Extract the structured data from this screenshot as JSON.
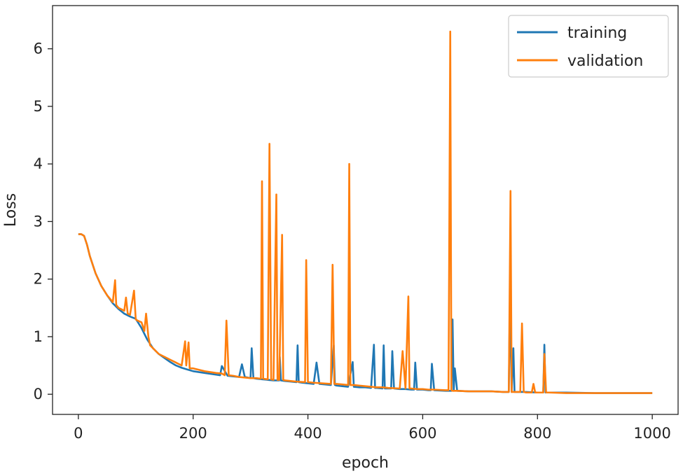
{
  "chart_data": {
    "type": "line",
    "title": "",
    "xlabel": "epoch",
    "ylabel": "Loss",
    "xlim": [
      -45,
      1045
    ],
    "ylim": [
      -0.35,
      6.75
    ],
    "xticks": [
      0,
      200,
      400,
      600,
      800,
      1000
    ],
    "yticks": [
      0,
      1,
      2,
      3,
      4,
      5,
      6
    ],
    "grid": false,
    "legend": "top-right",
    "series": [
      {
        "name": "training",
        "color": "#1f77b4",
        "x": [
          0,
          5,
          10,
          15,
          20,
          30,
          40,
          50,
          60,
          70,
          80,
          90,
          100,
          110,
          120,
          130,
          140,
          150,
          160,
          170,
          180,
          190,
          200,
          220,
          240,
          247,
          250,
          260,
          280,
          285,
          290,
          300,
          302,
          305,
          310,
          320,
          330,
          340,
          350,
          351,
          353,
          360,
          370,
          380,
          382,
          384,
          390,
          400,
          410,
          415,
          420,
          430,
          440,
          445,
          447,
          450,
          460,
          470,
          478,
          480,
          490,
          500,
          510,
          515,
          517,
          520,
          530,
          532,
          534,
          540,
          545,
          547,
          550,
          560,
          570,
          580,
          585,
          587,
          590,
          600,
          610,
          614,
          616,
          620,
          640,
          650,
          652,
          654,
          656,
          660,
          680,
          700,
          720,
          740,
          750,
          752,
          755,
          758,
          760,
          780,
          800,
          810,
          812,
          814,
          820,
          850,
          900,
          950,
          1000
        ],
        "y": [
          2.78,
          2.78,
          2.75,
          2.6,
          2.4,
          2.1,
          1.88,
          1.72,
          1.58,
          1.48,
          1.4,
          1.35,
          1.31,
          1.15,
          0.95,
          0.8,
          0.7,
          0.63,
          0.56,
          0.5,
          0.46,
          0.43,
          0.4,
          0.37,
          0.34,
          0.33,
          0.49,
          0.32,
          0.3,
          0.52,
          0.3,
          0.28,
          0.8,
          0.28,
          0.27,
          0.26,
          0.25,
          0.24,
          0.24,
          0.65,
          0.24,
          0.23,
          0.22,
          0.21,
          0.85,
          0.21,
          0.2,
          0.19,
          0.18,
          0.55,
          0.18,
          0.17,
          0.16,
          0.85,
          0.16,
          0.15,
          0.14,
          0.13,
          0.56,
          0.13,
          0.12,
          0.12,
          0.11,
          0.86,
          0.11,
          0.11,
          0.1,
          0.85,
          0.1,
          0.1,
          0.1,
          0.75,
          0.1,
          0.09,
          0.09,
          0.08,
          0.08,
          0.55,
          0.08,
          0.08,
          0.07,
          0.07,
          0.53,
          0.07,
          0.06,
          0.06,
          1.3,
          0.06,
          0.45,
          0.06,
          0.05,
          0.05,
          0.05,
          0.04,
          0.04,
          1.75,
          0.04,
          0.8,
          0.04,
          0.04,
          0.03,
          0.03,
          0.86,
          0.03,
          0.03,
          0.03,
          0.02,
          0.02,
          0.02
        ]
      },
      {
        "name": "validation",
        "color": "#ff7f0e",
        "x": [
          0,
          5,
          10,
          15,
          20,
          30,
          40,
          50,
          60,
          64,
          66,
          70,
          80,
          83,
          86,
          90,
          97,
          100,
          103,
          110,
          115,
          118,
          122,
          125,
          130,
          135,
          140,
          150,
          160,
          170,
          180,
          186,
          188,
          192,
          194,
          200,
          220,
          240,
          250,
          255,
          258,
          262,
          270,
          280,
          300,
          310,
          318,
          320,
          322,
          330,
          333,
          336,
          340,
          345,
          347,
          350,
          355,
          357,
          360,
          370,
          380,
          395,
          397,
          400,
          410,
          440,
          443,
          446,
          450,
          460,
          470,
          472,
          474,
          480,
          490,
          500,
          510,
          520,
          530,
          540,
          560,
          565,
          570,
          575,
          577,
          580,
          590,
          600,
          610,
          620,
          640,
          645,
          648,
          650,
          652,
          660,
          680,
          700,
          720,
          740,
          750,
          753,
          755,
          757,
          760,
          770,
          773,
          776,
          780,
          790,
          793,
          796,
          800,
          810,
          812,
          815,
          820,
          850,
          900,
          950,
          1000
        ],
        "y": [
          2.78,
          2.78,
          2.75,
          2.6,
          2.4,
          2.1,
          1.88,
          1.72,
          1.6,
          1.98,
          1.55,
          1.5,
          1.45,
          1.68,
          1.4,
          1.38,
          1.8,
          1.3,
          1.28,
          1.25,
          1.1,
          1.4,
          1.0,
          0.85,
          0.8,
          0.75,
          0.7,
          0.65,
          0.6,
          0.55,
          0.5,
          0.92,
          0.5,
          0.9,
          0.45,
          0.45,
          0.4,
          0.37,
          0.36,
          0.33,
          1.28,
          0.33,
          0.32,
          0.3,
          0.28,
          0.28,
          0.27,
          3.7,
          0.27,
          0.26,
          4.35,
          0.26,
          0.25,
          3.47,
          0.25,
          0.25,
          2.77,
          0.25,
          0.24,
          0.23,
          0.22,
          0.21,
          2.33,
          0.21,
          0.2,
          0.18,
          2.25,
          0.18,
          0.18,
          0.17,
          0.16,
          4.0,
          0.16,
          0.16,
          0.15,
          0.14,
          0.13,
          0.12,
          0.12,
          0.11,
          0.1,
          0.75,
          0.1,
          1.7,
          0.1,
          0.1,
          0.09,
          0.09,
          0.08,
          0.08,
          0.07,
          0.07,
          6.3,
          0.07,
          0.06,
          0.06,
          0.05,
          0.05,
          0.05,
          0.04,
          0.04,
          3.53,
          0.04,
          0.04,
          0.04,
          0.04,
          1.23,
          0.04,
          0.03,
          0.03,
          0.18,
          0.03,
          0.03,
          0.03,
          0.7,
          0.03,
          0.03,
          0.02,
          0.02,
          0.02,
          0.02
        ]
      }
    ]
  }
}
